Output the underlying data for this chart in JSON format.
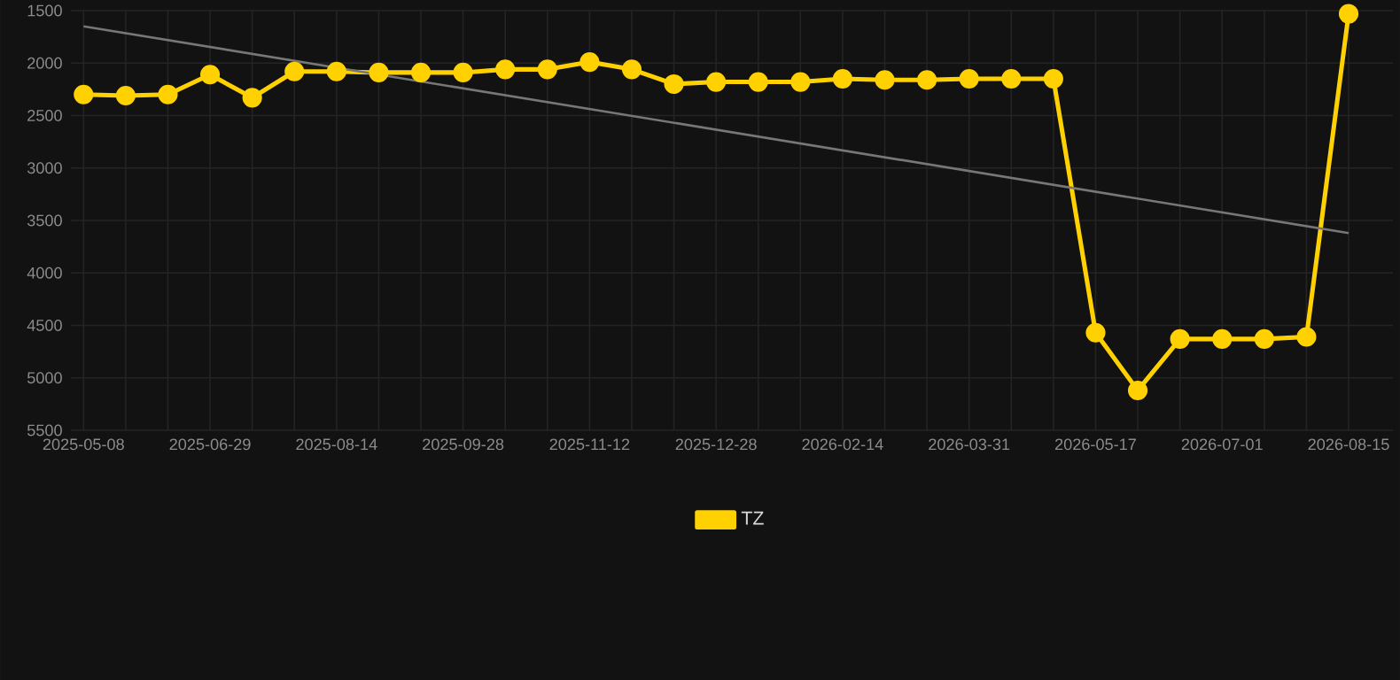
{
  "chart_data": {
    "type": "line",
    "categories": [
      "2025-05-08",
      null,
      null,
      "2025-06-29",
      null,
      null,
      "2025-08-14",
      null,
      null,
      "2025-09-28",
      null,
      null,
      "2025-11-12",
      null,
      null,
      "2025-12-28",
      null,
      null,
      "2026-02-14",
      null,
      null,
      "2026-03-31",
      null,
      null,
      "2026-05-17",
      null,
      null,
      "2026-07-01",
      null,
      null,
      "2026-08-15"
    ],
    "series": [
      {
        "name": "TZ",
        "color": "#ffd100",
        "marker": "circle",
        "values": [
          2300,
          2310,
          2300,
          2110,
          2330,
          2080,
          2080,
          2090,
          2090,
          2090,
          2060,
          2060,
          1990,
          2060,
          2200,
          2180,
          2180,
          2180,
          2150,
          2160,
          2160,
          2150,
          2150,
          2150,
          4570,
          5120,
          4630,
          4630,
          4630,
          4610,
          1530
        ]
      },
      {
        "type": "line",
        "color": "#777777",
        "marker": "none",
        "values": [
          1650,
          null,
          null,
          null,
          null,
          null,
          null,
          null,
          null,
          null,
          null,
          null,
          null,
          null,
          null,
          null,
          null,
          null,
          null,
          null,
          null,
          null,
          null,
          null,
          null,
          null,
          null,
          null,
          null,
          null,
          3620
        ]
      }
    ],
    "ylim": [
      5500,
      1500
    ],
    "yticks": [
      1500,
      2000,
      2500,
      3000,
      3500,
      4000,
      4500,
      5000,
      5500
    ],
    "grid": true,
    "legend": "bottom"
  }
}
